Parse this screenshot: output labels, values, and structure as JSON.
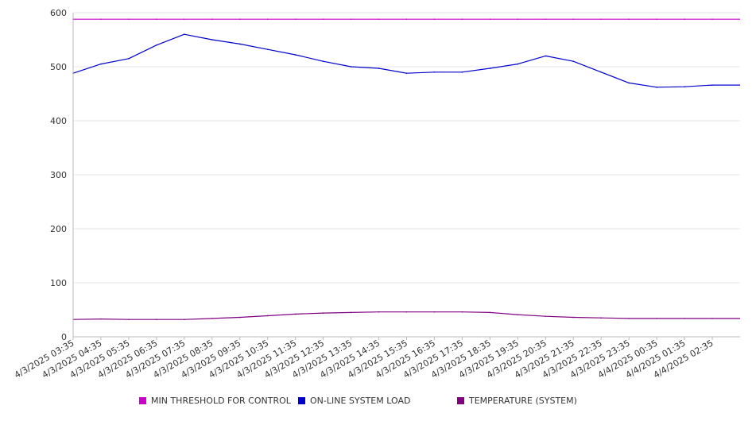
{
  "chart_data": {
    "type": "line",
    "title": "",
    "xlabel": "",
    "ylabel": "",
    "ylim": [
      0,
      600
    ],
    "yticks": [
      0,
      100,
      200,
      300,
      400,
      500,
      600
    ],
    "grid": true,
    "legend_position": "bottom",
    "x": [
      "4/3/2025 03:35",
      "4/3/2025 04:35",
      "4/3/2025 05:35",
      "4/3/2025 06:35",
      "4/3/2025 07:35",
      "4/3/2025 08:35",
      "4/3/2025 09:35",
      "4/3/2025 10:35",
      "4/3/2025 11:35",
      "4/3/2025 12:35",
      "4/3/2025 13:35",
      "4/3/2025 14:35",
      "4/3/2025 15:35",
      "4/3/2025 16:35",
      "4/3/2025 17:35",
      "4/3/2025 18:35",
      "4/3/2025 19:35",
      "4/3/2025 20:35",
      "4/3/2025 21:35",
      "4/3/2025 22:35",
      "4/3/2025 23:35",
      "4/4/2025 00:35",
      "4/4/2025 01:35",
      "4/4/2025 02:35"
    ],
    "series": [
      {
        "name": "MIN THRESHOLD FOR CONTROL",
        "color": "#cc00cc",
        "values": [
          588,
          588,
          588,
          588,
          588,
          588,
          588,
          588,
          588,
          588,
          588,
          588,
          588,
          588,
          588,
          588,
          588,
          588,
          588,
          588,
          588,
          588,
          588,
          588
        ]
      },
      {
        "name": "ON-LINE SYSTEM LOAD",
        "color": "#0000cc",
        "values": [
          488,
          505,
          515,
          540,
          560,
          550,
          542,
          532,
          522,
          510,
          500,
          497,
          488,
          490,
          490,
          497,
          505,
          520,
          510,
          490,
          470,
          462,
          463,
          466
        ]
      },
      {
        "name": "TEMPERATURE (SYSTEM)",
        "color": "#800080",
        "values": [
          32,
          33,
          32,
          32,
          32,
          34,
          36,
          39,
          42,
          44,
          45,
          46,
          46,
          46,
          46,
          45,
          41,
          38,
          36,
          35,
          34,
          34,
          34,
          34
        ]
      }
    ]
  }
}
